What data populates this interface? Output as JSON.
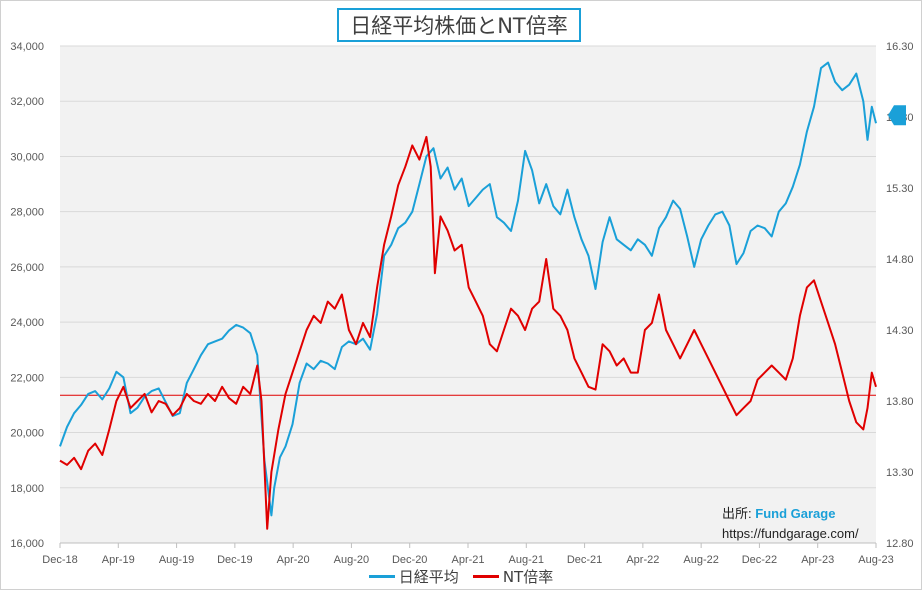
{
  "chart_data": {
    "type": "line",
    "title": "日経平均株価とNT倍率",
    "x_unit": "months since Dec-2018",
    "xlim": [
      0,
      57.9
    ],
    "x_tick_labels": [
      "Dec-18",
      "Apr-19",
      "Aug-19",
      "Dec-19",
      "Apr-20",
      "Aug-20",
      "Dec-20",
      "Apr-21",
      "Aug-21",
      "Dec-21",
      "Apr-22",
      "Aug-22",
      "Dec-22",
      "Apr-23",
      "Aug-23"
    ],
    "y_left": {
      "lim": [
        16000,
        34000
      ],
      "step": 2000,
      "tick_labels": [
        "16,000",
        "18,000",
        "20,000",
        "22,000",
        "24,000",
        "26,000",
        "28,000",
        "30,000",
        "32,000",
        "34,000"
      ]
    },
    "y_right": {
      "lim": [
        12.8,
        16.3
      ],
      "step": 0.5,
      "tick_labels": [
        "12.80",
        "13.30",
        "13.80",
        "14.30",
        "14.80",
        "15.30",
        "15.80",
        "16.30"
      ]
    },
    "grid": true,
    "legend_position": "bottom",
    "reference_line": {
      "axis": "left",
      "value": 21350,
      "color": "#e00000"
    },
    "series": [
      {
        "name": "日経平均",
        "axis": "left",
        "color": "#1aa0d8",
        "points": [
          [
            0,
            19500
          ],
          [
            0.5,
            20200
          ],
          [
            1,
            20700
          ],
          [
            1.5,
            21000
          ],
          [
            2,
            21400
          ],
          [
            2.5,
            21500
          ],
          [
            3,
            21200
          ],
          [
            3.5,
            21600
          ],
          [
            4,
            22200
          ],
          [
            4.5,
            22000
          ],
          [
            5,
            20700
          ],
          [
            5.5,
            20900
          ],
          [
            6,
            21300
          ],
          [
            6.5,
            21500
          ],
          [
            7,
            21600
          ],
          [
            7.5,
            21100
          ],
          [
            8,
            20600
          ],
          [
            8.5,
            20700
          ],
          [
            9,
            21800
          ],
          [
            9.5,
            22300
          ],
          [
            10,
            22800
          ],
          [
            10.5,
            23200
          ],
          [
            11,
            23300
          ],
          [
            11.5,
            23400
          ],
          [
            12,
            23700
          ],
          [
            12.5,
            23900
          ],
          [
            13,
            23800
          ],
          [
            13.5,
            23600
          ],
          [
            14,
            22800
          ],
          [
            14.5,
            19000
          ],
          [
            15,
            17000
          ],
          [
            15.2,
            18000
          ],
          [
            15.6,
            19100
          ],
          [
            16,
            19500
          ],
          [
            16.5,
            20300
          ],
          [
            17,
            21800
          ],
          [
            17.5,
            22500
          ],
          [
            18,
            22300
          ],
          [
            18.5,
            22600
          ],
          [
            19,
            22500
          ],
          [
            19.5,
            22300
          ],
          [
            20,
            23100
          ],
          [
            20.5,
            23300
          ],
          [
            21,
            23200
          ],
          [
            21.5,
            23400
          ],
          [
            22,
            23000
          ],
          [
            22.5,
            24300
          ],
          [
            23,
            26400
          ],
          [
            23.5,
            26800
          ],
          [
            24,
            27400
          ],
          [
            24.5,
            27600
          ],
          [
            25,
            28000
          ],
          [
            25.5,
            29000
          ],
          [
            26,
            30000
          ],
          [
            26.5,
            30300
          ],
          [
            27,
            29200
          ],
          [
            27.5,
            29600
          ],
          [
            28,
            28800
          ],
          [
            28.5,
            29200
          ],
          [
            29,
            28200
          ],
          [
            29.5,
            28500
          ],
          [
            30,
            28800
          ],
          [
            30.5,
            29000
          ],
          [
            31,
            27800
          ],
          [
            31.5,
            27600
          ],
          [
            32,
            27300
          ],
          [
            32.5,
            28400
          ],
          [
            33,
            30200
          ],
          [
            33.5,
            29500
          ],
          [
            34,
            28300
          ],
          [
            34.5,
            29000
          ],
          [
            35,
            28200
          ],
          [
            35.5,
            27900
          ],
          [
            36,
            28800
          ],
          [
            36.5,
            27800
          ],
          [
            37,
            27000
          ],
          [
            37.5,
            26400
          ],
          [
            38,
            25200
          ],
          [
            38.5,
            26900
          ],
          [
            39,
            27800
          ],
          [
            39.5,
            27000
          ],
          [
            40,
            26800
          ],
          [
            40.5,
            26600
          ],
          [
            41,
            27000
          ],
          [
            41.5,
            26800
          ],
          [
            42,
            26400
          ],
          [
            42.5,
            27400
          ],
          [
            43,
            27800
          ],
          [
            43.5,
            28400
          ],
          [
            44,
            28100
          ],
          [
            44.5,
            27100
          ],
          [
            45,
            26000
          ],
          [
            45.5,
            27000
          ],
          [
            46,
            27500
          ],
          [
            46.5,
            27900
          ],
          [
            47,
            28000
          ],
          [
            47.5,
            27500
          ],
          [
            48,
            26100
          ],
          [
            48.5,
            26500
          ],
          [
            49,
            27300
          ],
          [
            49.5,
            27500
          ],
          [
            50,
            27400
          ],
          [
            50.5,
            27100
          ],
          [
            51,
            28000
          ],
          [
            51.5,
            28300
          ],
          [
            52,
            28900
          ],
          [
            52.5,
            29700
          ],
          [
            53,
            30900
          ],
          [
            53.5,
            31800
          ],
          [
            54,
            33200
          ],
          [
            54.5,
            33400
          ],
          [
            55,
            32700
          ],
          [
            55.5,
            32400
          ],
          [
            56,
            32600
          ],
          [
            56.5,
            33000
          ],
          [
            57,
            32000
          ],
          [
            57.3,
            30600
          ],
          [
            57.6,
            31800
          ],
          [
            57.9,
            31200
          ]
        ]
      },
      {
        "name": "NT倍率",
        "axis": "right",
        "color": "#e00000",
        "points": [
          [
            0,
            13.38
          ],
          [
            0.5,
            13.35
          ],
          [
            1,
            13.4
          ],
          [
            1.5,
            13.32
          ],
          [
            2,
            13.45
          ],
          [
            2.5,
            13.5
          ],
          [
            3,
            13.42
          ],
          [
            3.5,
            13.6
          ],
          [
            4,
            13.8
          ],
          [
            4.5,
            13.9
          ],
          [
            5,
            13.75
          ],
          [
            5.5,
            13.8
          ],
          [
            6,
            13.85
          ],
          [
            6.5,
            13.72
          ],
          [
            7,
            13.8
          ],
          [
            7.5,
            13.78
          ],
          [
            8,
            13.7
          ],
          [
            8.5,
            13.75
          ],
          [
            9,
            13.85
          ],
          [
            9.5,
            13.8
          ],
          [
            10,
            13.78
          ],
          [
            10.5,
            13.85
          ],
          [
            11,
            13.8
          ],
          [
            11.5,
            13.9
          ],
          [
            12,
            13.82
          ],
          [
            12.5,
            13.78
          ],
          [
            13,
            13.9
          ],
          [
            13.5,
            13.85
          ],
          [
            14,
            14.05
          ],
          [
            14.3,
            13.8
          ],
          [
            14.7,
            12.9
          ],
          [
            15,
            13.3
          ],
          [
            15.5,
            13.6
          ],
          [
            16,
            13.85
          ],
          [
            16.5,
            14.0
          ],
          [
            17,
            14.15
          ],
          [
            17.5,
            14.3
          ],
          [
            18,
            14.4
          ],
          [
            18.5,
            14.35
          ],
          [
            19,
            14.5
          ],
          [
            19.5,
            14.45
          ],
          [
            20,
            14.55
          ],
          [
            20.5,
            14.3
          ],
          [
            21,
            14.2
          ],
          [
            21.5,
            14.35
          ],
          [
            22,
            14.25
          ],
          [
            22.5,
            14.6
          ],
          [
            23,
            14.9
          ],
          [
            23.5,
            15.1
          ],
          [
            24,
            15.32
          ],
          [
            24.5,
            15.45
          ],
          [
            25,
            15.6
          ],
          [
            25.5,
            15.5
          ],
          [
            26,
            15.66
          ],
          [
            26.3,
            15.45
          ],
          [
            26.6,
            14.7
          ],
          [
            27,
            15.1
          ],
          [
            27.5,
            15.0
          ],
          [
            28,
            14.86
          ],
          [
            28.5,
            14.9
          ],
          [
            29,
            14.6
          ],
          [
            29.5,
            14.5
          ],
          [
            30,
            14.4
          ],
          [
            30.5,
            14.2
          ],
          [
            31,
            14.15
          ],
          [
            31.5,
            14.3
          ],
          [
            32,
            14.45
          ],
          [
            32.5,
            14.4
          ],
          [
            33,
            14.3
          ],
          [
            33.5,
            14.45
          ],
          [
            34,
            14.5
          ],
          [
            34.5,
            14.8
          ],
          [
            35,
            14.45
          ],
          [
            35.5,
            14.4
          ],
          [
            36,
            14.3
          ],
          [
            36.5,
            14.1
          ],
          [
            37,
            14.0
          ],
          [
            37.5,
            13.9
          ],
          [
            38,
            13.88
          ],
          [
            38.5,
            14.2
          ],
          [
            39,
            14.15
          ],
          [
            39.5,
            14.05
          ],
          [
            40,
            14.1
          ],
          [
            40.5,
            14.0
          ],
          [
            41,
            14.0
          ],
          [
            41.5,
            14.3
          ],
          [
            42,
            14.35
          ],
          [
            42.5,
            14.55
          ],
          [
            43,
            14.3
          ],
          [
            43.5,
            14.2
          ],
          [
            44,
            14.1
          ],
          [
            44.5,
            14.2
          ],
          [
            45,
            14.3
          ],
          [
            45.5,
            14.2
          ],
          [
            46,
            14.1
          ],
          [
            46.5,
            14.0
          ],
          [
            47,
            13.9
          ],
          [
            47.5,
            13.8
          ],
          [
            48,
            13.7
          ],
          [
            48.5,
            13.75
          ],
          [
            49,
            13.8
          ],
          [
            49.5,
            13.95
          ],
          [
            50,
            14.0
          ],
          [
            50.5,
            14.05
          ],
          [
            51,
            14.0
          ],
          [
            51.5,
            13.95
          ],
          [
            52,
            14.1
          ],
          [
            52.5,
            14.4
          ],
          [
            53,
            14.6
          ],
          [
            53.5,
            14.65
          ],
          [
            54,
            14.5
          ],
          [
            54.5,
            14.35
          ],
          [
            55,
            14.2
          ],
          [
            55.5,
            14.0
          ],
          [
            56,
            13.8
          ],
          [
            56.5,
            13.65
          ],
          [
            57,
            13.6
          ],
          [
            57.3,
            13.75
          ],
          [
            57.6,
            14.0
          ],
          [
            57.9,
            13.9
          ]
        ]
      }
    ]
  },
  "source": {
    "label": "出所:",
    "brand": "Fund Garage",
    "url": "https://fundgarage.com/"
  }
}
